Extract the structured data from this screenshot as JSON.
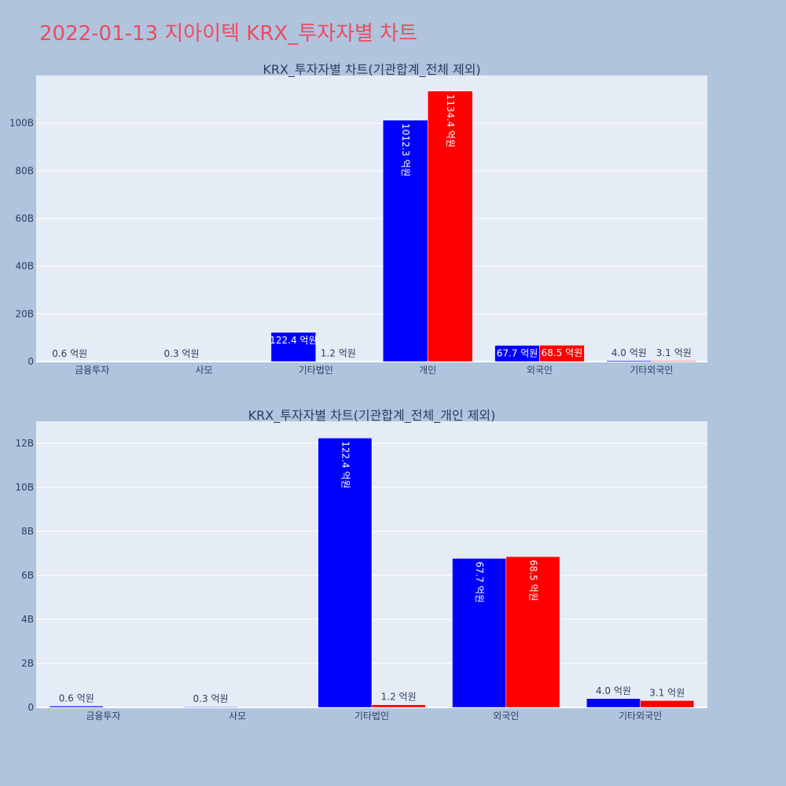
{
  "title": "2022-01-13 지아이텍 KRX_투자자별 차트",
  "colors": {
    "buy": "#0000ff",
    "sell": "#ff0000",
    "background": "#b0c4de",
    "plot_background": "#e5ecf6",
    "title": "#ef4a5f"
  },
  "chart_data": [
    {
      "type": "bar",
      "title": "KRX_투자자별 차트(기관합계_전체 제외)",
      "categories": [
        "금융투자",
        "사모",
        "기타법인",
        "개인",
        "외국인",
        "기타외국인"
      ],
      "series": [
        {
          "values": [
            60000000,
            30000000,
            12240000000,
            101230000000,
            6770000000,
            400000000
          ],
          "labels": [
            "0.6 억원",
            "0.3 억원",
            "122.4 억원",
            "1012.3 억원",
            "67.7 억원",
            "4.0 억원"
          ]
        },
        {
          "values": [
            null,
            null,
            120000000,
            113440000000,
            6850000000,
            310000000
          ],
          "labels": [
            "",
            "",
            "1.2 억원",
            "1134.4 억원",
            "68.5 억원",
            "3.1 억원"
          ]
        }
      ],
      "ylim": [
        0,
        120000000000
      ],
      "yticks": [
        0,
        20000000000,
        40000000000,
        60000000000,
        80000000000,
        100000000000
      ],
      "ytick_labels": [
        "0",
        "20B",
        "40B",
        "60B",
        "80B",
        "100B"
      ],
      "grid": true,
      "barmode": "group"
    },
    {
      "type": "bar",
      "title": "KRX_투자자별 차트(기관합계_전체_개인 제외)",
      "categories": [
        "금융투자",
        "사모",
        "기타법인",
        "외국인",
        "기타외국인"
      ],
      "series": [
        {
          "values": [
            60000000,
            30000000,
            12240000000,
            6770000000,
            400000000
          ],
          "labels": [
            "0.6 억원",
            "0.3 억원",
            "122.4 억원",
            "67.7 억원",
            "4.0 억원"
          ]
        },
        {
          "values": [
            null,
            null,
            120000000,
            6850000000,
            310000000
          ],
          "labels": [
            "",
            "",
            "1.2 억원",
            "68.5 억원",
            "3.1 억원"
          ]
        }
      ],
      "ylim": [
        0,
        13000000000
      ],
      "yticks": [
        0,
        2000000000,
        4000000000,
        6000000000,
        8000000000,
        10000000000,
        12000000000
      ],
      "ytick_labels": [
        "0",
        "2B",
        "4B",
        "6B",
        "8B",
        "10B",
        "12B"
      ],
      "grid": true,
      "barmode": "group"
    }
  ]
}
